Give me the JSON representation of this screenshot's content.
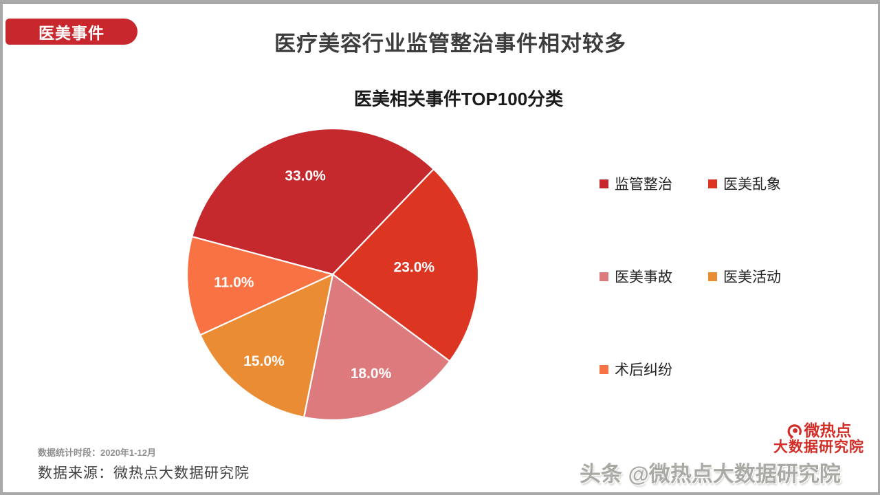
{
  "page": {
    "badge": "医美事件",
    "title": "医疗美容行业监管整治事件相对较多"
  },
  "chart_data": {
    "type": "pie",
    "title": "医美相关事件TOP100分类",
    "legend_position": "right",
    "label_color": "#ffffff",
    "start_angle_deg": 285,
    "direction": "clockwise",
    "slices": [
      {
        "label": "监管整治",
        "value": 33.0,
        "display": "33.0%",
        "color": "#c5282d"
      },
      {
        "label": "医美乱象",
        "value": 23.0,
        "display": "23.0%",
        "color": "#dc3522"
      },
      {
        "label": "医美事故",
        "value": 18.0,
        "display": "18.0%",
        "color": "#dd7a7e"
      },
      {
        "label": "医美活动",
        "value": 15.0,
        "display": "15.0%",
        "color": "#ea8c33"
      },
      {
        "label": "术后纠纷",
        "value": 11.0,
        "display": "11.0%",
        "color": "#f97243"
      }
    ],
    "legend_rows": [
      [
        0,
        1
      ],
      [
        2,
        3
      ],
      [
        4
      ]
    ]
  },
  "footer": {
    "period_label": "数据统计时段：2020年1-12月",
    "source_label": "数据来源：微热点大数据研究院",
    "logo_line1": "微热点",
    "logo_line2": "大数据研究院",
    "watermark": "头条 @微热点大数据研究院"
  }
}
